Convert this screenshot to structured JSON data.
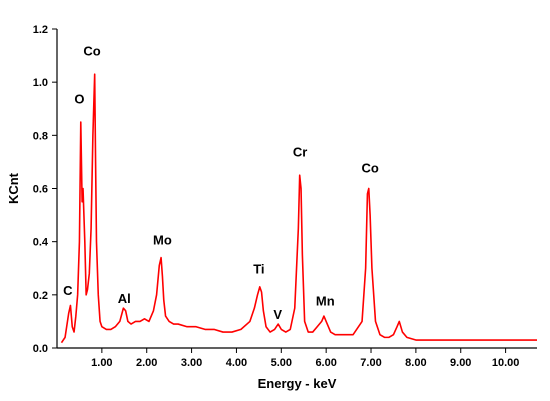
{
  "chart_data": {
    "type": "line",
    "title": "",
    "xlabel": "Energy - keV",
    "ylabel": "KCnt",
    "xlim": [
      0,
      10.7
    ],
    "ylim": [
      0,
      1.2
    ],
    "xticks": [
      {
        "value": 1,
        "label": "1.00"
      },
      {
        "value": 2,
        "label": "2.00"
      },
      {
        "value": 3,
        "label": "3.00"
      },
      {
        "value": 4,
        "label": "4.00"
      },
      {
        "value": 5,
        "label": "5.00"
      },
      {
        "value": 6,
        "label": "6.00"
      },
      {
        "value": 7,
        "label": "7.00"
      },
      {
        "value": 8,
        "label": "8.00"
      },
      {
        "value": 9,
        "label": "9.00"
      },
      {
        "value": 10,
        "label": "10.00"
      }
    ],
    "yticks": [
      {
        "value": 0,
        "label": "0.0"
      },
      {
        "value": 0.2,
        "label": "0.2"
      },
      {
        "value": 0.4,
        "label": "0.4"
      },
      {
        "value": 0.6,
        "label": "0.6"
      },
      {
        "value": 0.8,
        "label": "0.8"
      },
      {
        "value": 1.0,
        "label": "1.0"
      },
      {
        "value": 1.2,
        "label": "1.2"
      }
    ],
    "grid": false,
    "line_color": "#ff0000",
    "series": [
      {
        "x": [
          0.1,
          0.18,
          0.26,
          0.3,
          0.34,
          0.38,
          0.42,
          0.46,
          0.5,
          0.53,
          0.56,
          0.58,
          0.62,
          0.65,
          0.68,
          0.72,
          0.76,
          0.8,
          0.84,
          0.86,
          0.88,
          0.92,
          0.96,
          1.0,
          1.1,
          1.2,
          1.3,
          1.4,
          1.48,
          1.53,
          1.58,
          1.65,
          1.75,
          1.85,
          1.95,
          2.05,
          2.15,
          2.22,
          2.28,
          2.32,
          2.35,
          2.38,
          2.42,
          2.5,
          2.6,
          2.7,
          2.9,
          3.1,
          3.3,
          3.5,
          3.7,
          3.9,
          4.1,
          4.3,
          4.4,
          4.47,
          4.52,
          4.56,
          4.6,
          4.66,
          4.75,
          4.85,
          4.93,
          5.0,
          5.1,
          5.2,
          5.3,
          5.38,
          5.41,
          5.44,
          5.47,
          5.52,
          5.6,
          5.7,
          5.8,
          5.9,
          5.95,
          6.0,
          6.1,
          6.2,
          6.4,
          6.6,
          6.8,
          6.88,
          6.92,
          6.95,
          6.98,
          7.02,
          7.1,
          7.2,
          7.3,
          7.4,
          7.5,
          7.58,
          7.63,
          7.7,
          7.8,
          8.0,
          8.5,
          9.0,
          9.5,
          10.0,
          10.5,
          10.7
        ],
        "y": [
          0.02,
          0.04,
          0.13,
          0.16,
          0.08,
          0.06,
          0.12,
          0.2,
          0.4,
          0.85,
          0.55,
          0.6,
          0.4,
          0.2,
          0.22,
          0.28,
          0.45,
          0.8,
          1.03,
          0.7,
          0.4,
          0.2,
          0.1,
          0.08,
          0.07,
          0.07,
          0.08,
          0.1,
          0.15,
          0.14,
          0.1,
          0.09,
          0.1,
          0.1,
          0.11,
          0.1,
          0.14,
          0.2,
          0.31,
          0.34,
          0.27,
          0.18,
          0.12,
          0.1,
          0.09,
          0.09,
          0.08,
          0.08,
          0.07,
          0.07,
          0.06,
          0.06,
          0.07,
          0.1,
          0.15,
          0.2,
          0.23,
          0.21,
          0.14,
          0.08,
          0.06,
          0.07,
          0.09,
          0.07,
          0.06,
          0.07,
          0.15,
          0.45,
          0.65,
          0.6,
          0.35,
          0.1,
          0.06,
          0.06,
          0.08,
          0.1,
          0.12,
          0.1,
          0.06,
          0.05,
          0.05,
          0.05,
          0.1,
          0.3,
          0.58,
          0.6,
          0.5,
          0.3,
          0.1,
          0.05,
          0.04,
          0.04,
          0.05,
          0.08,
          0.1,
          0.06,
          0.04,
          0.03,
          0.03,
          0.03,
          0.03,
          0.03,
          0.03,
          0.03
        ]
      }
    ],
    "annotations": [
      {
        "text": "C",
        "x": 0.24,
        "y": 0.2
      },
      {
        "text": "O",
        "x": 0.5,
        "y": 0.92
      },
      {
        "text": "Co",
        "x": 0.78,
        "y": 1.1
      },
      {
        "text": "Al",
        "x": 1.5,
        "y": 0.17
      },
      {
        "text": "Mo",
        "x": 2.35,
        "y": 0.39
      },
      {
        "text": "Ti",
        "x": 4.5,
        "y": 0.28
      },
      {
        "text": "V",
        "x": 4.92,
        "y": 0.11
      },
      {
        "text": "Cr",
        "x": 5.42,
        "y": 0.72
      },
      {
        "text": "Mn",
        "x": 5.98,
        "y": 0.16
      },
      {
        "text": "Co",
        "x": 6.98,
        "y": 0.66
      }
    ]
  }
}
